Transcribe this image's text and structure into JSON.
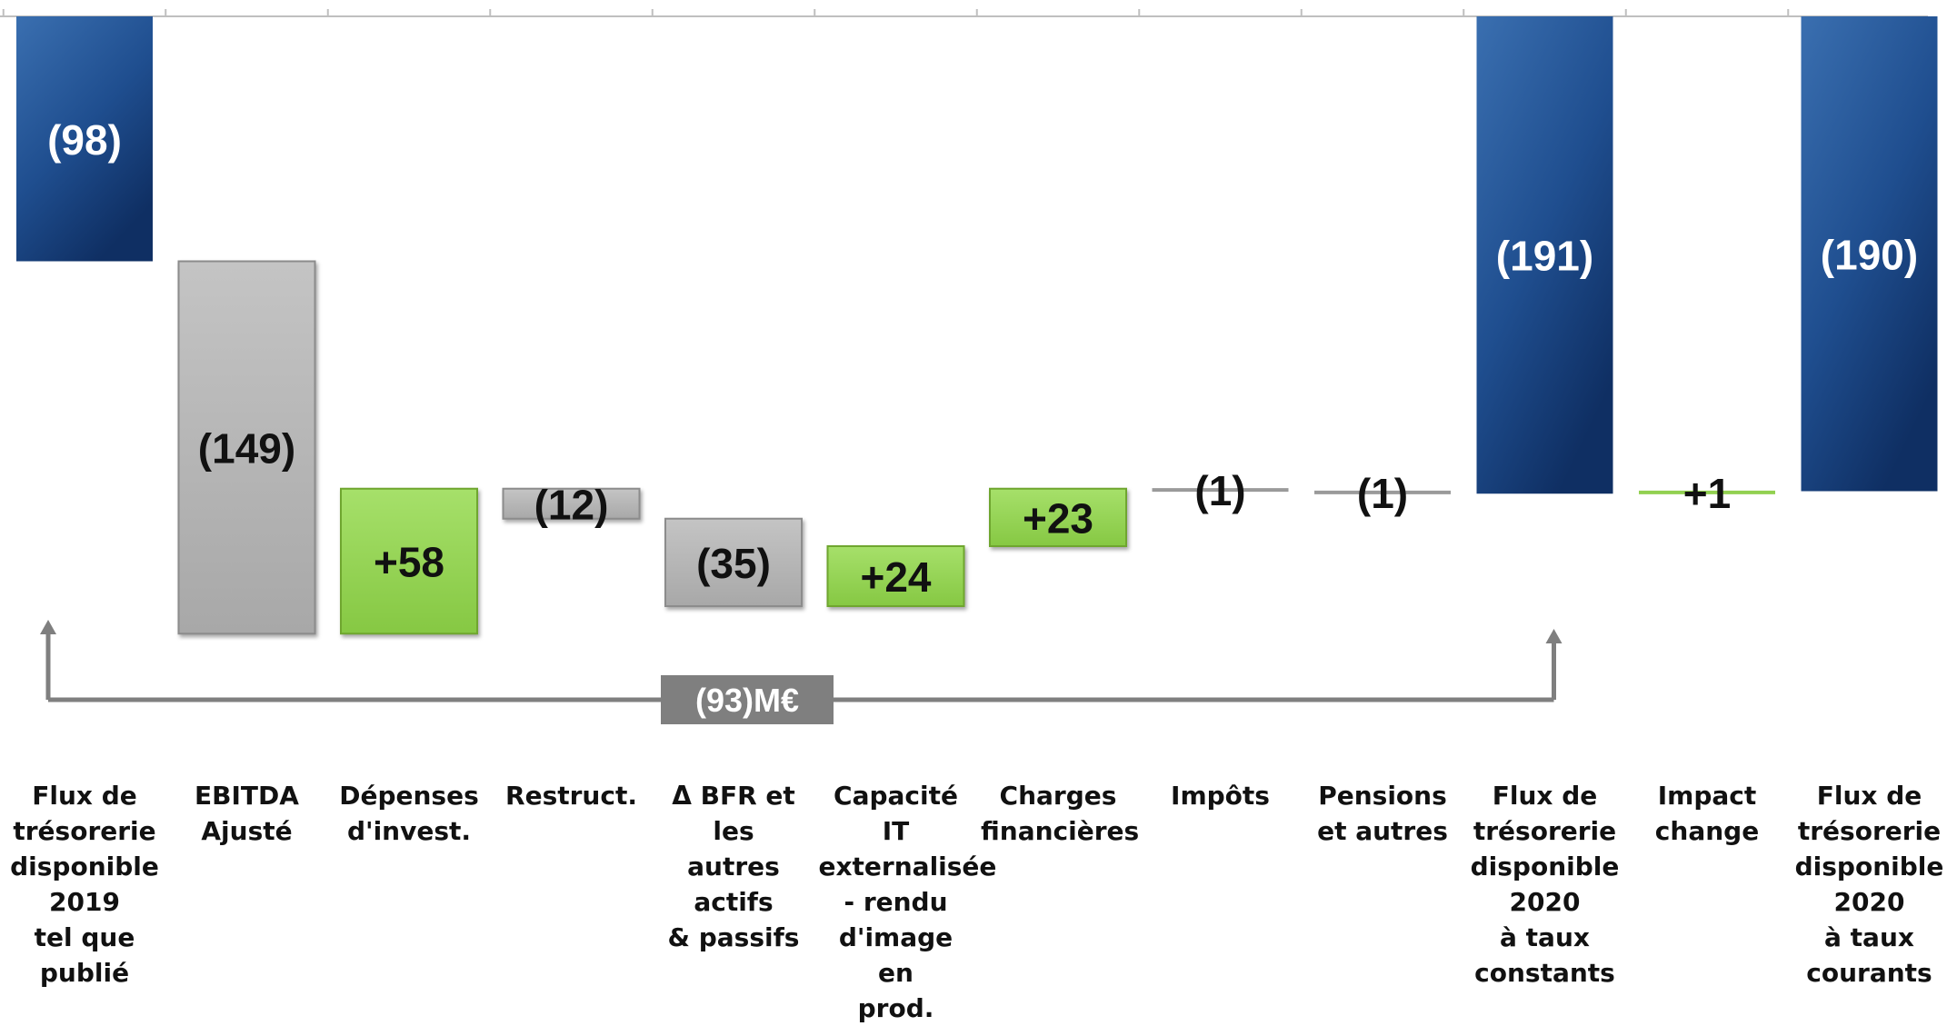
{
  "chart_data": {
    "type": "waterfall",
    "unit": "M€",
    "categories": [
      "Flux de\ntrésorerie\ndisponible\n2019\ntel que\npublié",
      "EBITDA\nAjusté",
      "Dépenses\nd'invest.",
      "Restruct.",
      "Δ BFR et les\nautres actifs\n& passifs",
      "Capacité IT\nexternalisée\n- rendu\nd'image en\nprod.",
      "Charges\nfinancières",
      "Impôts",
      "Pensions\net autres",
      "Flux de\ntrésorerie\ndisponible\n2020\nà taux\nconstants",
      "Impact\nchange",
      "Flux de\ntrésorerie\ndisponible\n2020\nà taux\ncourants"
    ],
    "bars": [
      {
        "label": "(98)",
        "value": -98,
        "kind": "total",
        "color": "#1f4e8f"
      },
      {
        "label": "(149)",
        "value": -149,
        "kind": "negative",
        "color": "#b0b0b0"
      },
      {
        "label": "+58",
        "value": 58,
        "kind": "positive",
        "color": "#92d050"
      },
      {
        "label": "(12)",
        "value": -12,
        "kind": "negative",
        "color": "#b0b0b0"
      },
      {
        "label": "(35)",
        "value": -35,
        "kind": "negative",
        "color": "#b0b0b0"
      },
      {
        "label": "+24",
        "value": 24,
        "kind": "positive",
        "color": "#92d050"
      },
      {
        "label": "+23",
        "value": 23,
        "kind": "positive",
        "color": "#92d050"
      },
      {
        "label": "(1)",
        "value": -1,
        "kind": "negative",
        "color": "#9a9a9a"
      },
      {
        "label": "(1)",
        "value": -1,
        "kind": "negative",
        "color": "#9a9a9a"
      },
      {
        "label": "(191)",
        "value": -191,
        "kind": "total",
        "color": "#1f4e8f"
      },
      {
        "label": "+1",
        "value": 1,
        "kind": "positive",
        "color": "#92d050"
      },
      {
        "label": "(190)",
        "value": -190,
        "kind": "total",
        "color": "#1f4e8f"
      }
    ],
    "change_annotation": {
      "label": "(93)M€",
      "from_index": 0,
      "to_index": 9
    },
    "colors": {
      "total": "#1f4e8f",
      "negative": "#b0b0b0",
      "positive": "#92d050",
      "connector": "#7f7f7f"
    }
  }
}
